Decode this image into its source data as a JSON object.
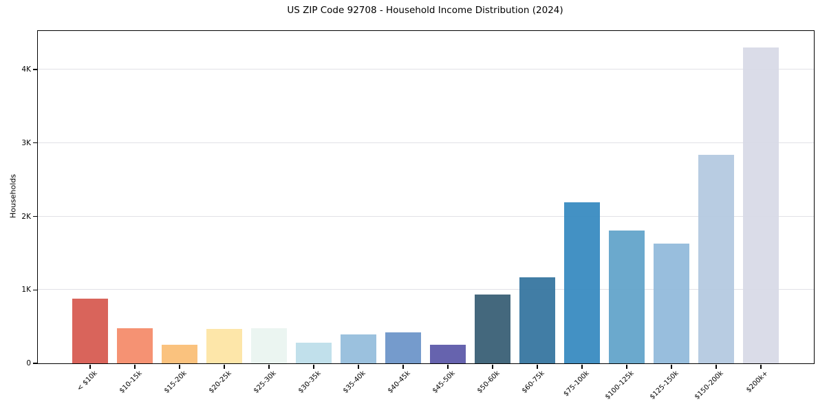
{
  "chart_data": {
    "type": "bar",
    "title": "US ZIP Code 92708 - Household Income Distribution (2024)",
    "xlabel": "",
    "ylabel": "Households",
    "categories": [
      "< $10k",
      "$10-15k",
      "$15-20k",
      "$20-25k",
      "$25-30k",
      "$30-35k",
      "$35-40k",
      "$40-45k",
      "$45-50k",
      "$50-60k",
      "$60-75k",
      "$75-100k",
      "$100-125k",
      "$125-150k",
      "$150-200k",
      "$200k+"
    ],
    "values": [
      880,
      480,
      255,
      470,
      475,
      280,
      390,
      420,
      255,
      940,
      1170,
      2190,
      1810,
      1630,
      2840,
      4300
    ],
    "bar_colors": [
      "#d6584f",
      "#f48a68",
      "#fabd74",
      "#fde4a2",
      "#e9f4f0",
      "#bcdeea",
      "#93bcdb",
      "#6b93c8",
      "#5a57a8",
      "#365d73",
      "#33739e",
      "#3589bf",
      "#60a3c9",
      "#90b9da",
      "#b3c8e0",
      "#d7d9e6"
    ],
    "ylim": [
      0,
      4525
    ],
    "yticks": [
      {
        "value": 0,
        "label": "0"
      },
      {
        "value": 1000,
        "label": "1K"
      },
      {
        "value": 2000,
        "label": "2K"
      },
      {
        "value": 3000,
        "label": "3K"
      },
      {
        "value": 4000,
        "label": "4K"
      }
    ],
    "grid": "horizontal",
    "grid_color": "#e1e1e6",
    "background": "#ffffff",
    "frame_color": "#000000",
    "legend": null
  }
}
